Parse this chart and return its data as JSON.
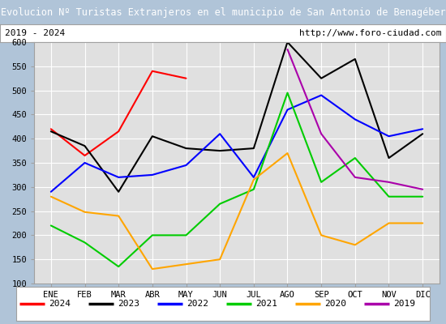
{
  "title": "Evolucion Nº Turistas Extranjeros en el municipio de San Antonio de Benagéber",
  "subtitle_left": "2019 - 2024",
  "subtitle_right": "http://www.foro-ciudad.com",
  "months": [
    "ENE",
    "FEB",
    "MAR",
    "ABR",
    "MAY",
    "JUN",
    "JUL",
    "AGO",
    "SEP",
    "OCT",
    "NOV",
    "DIC"
  ],
  "ylim": [
    100,
    600
  ],
  "yticks": [
    100,
    150,
    200,
    250,
    300,
    350,
    400,
    450,
    500,
    550,
    600
  ],
  "series": {
    "2024": {
      "color": "#ff0000",
      "values": [
        420,
        365,
        415,
        540,
        525,
        null,
        null,
        null,
        null,
        null,
        null,
        null
      ]
    },
    "2023": {
      "color": "#000000",
      "values": [
        415,
        385,
        290,
        405,
        380,
        375,
        380,
        600,
        525,
        565,
        360,
        410
      ]
    },
    "2022": {
      "color": "#0000ff",
      "values": [
        290,
        350,
        320,
        325,
        345,
        410,
        320,
        460,
        490,
        440,
        405,
        420
      ]
    },
    "2021": {
      "color": "#00cc00",
      "values": [
        220,
        185,
        135,
        200,
        200,
        265,
        295,
        495,
        310,
        360,
        280,
        280
      ]
    },
    "2020": {
      "color": "#ffa500",
      "values": [
        280,
        248,
        240,
        130,
        140,
        150,
        315,
        370,
        200,
        180,
        225,
        225
      ]
    },
    "2019": {
      "color": "#aa00aa",
      "values": [
        null,
        null,
        null,
        null,
        null,
        null,
        null,
        585,
        410,
        320,
        310,
        295
      ]
    }
  },
  "title_bg_color": "#4472c4",
  "title_text_color": "#ffffff",
  "plot_bg_color": "#e0e0e0",
  "grid_color": "#ffffff",
  "border_color": "#a0a0a0",
  "legend_order": [
    "2024",
    "2023",
    "2022",
    "2021",
    "2020",
    "2019"
  ],
  "fig_width": 5.5,
  "fig_height": 4.0,
  "dpi": 100
}
